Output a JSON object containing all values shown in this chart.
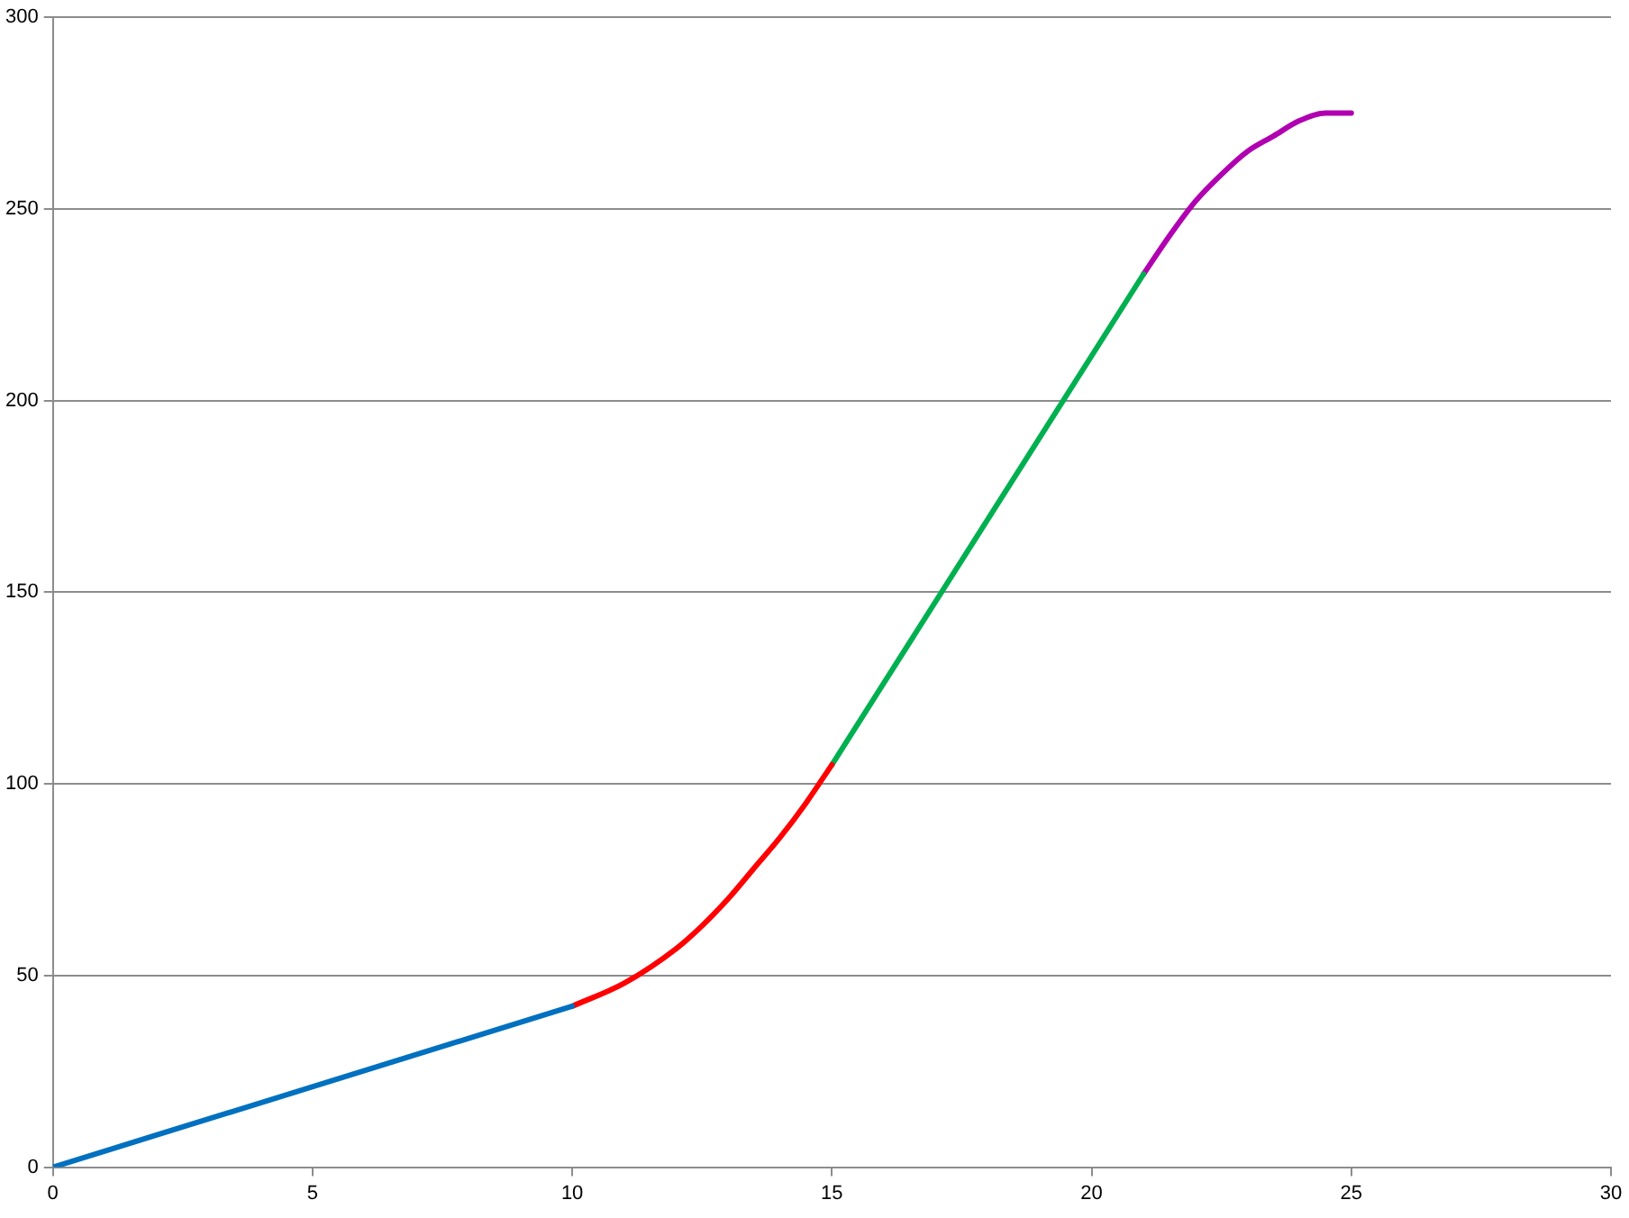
{
  "chart_data": {
    "type": "line",
    "xlim": [
      0,
      30
    ],
    "xticks": [
      0,
      5,
      10,
      15,
      20,
      25,
      30
    ],
    "ylim": [
      0,
      300
    ],
    "yticks": [
      0,
      50,
      100,
      150,
      200,
      250,
      300
    ],
    "grid": "y",
    "marker": "none",
    "line_style": "solid",
    "series": [
      {
        "color": "#0070c0",
        "x": [
          0,
          10
        ],
        "values": [
          0,
          42
        ]
      },
      {
        "color": "#ff0000",
        "x": [
          10,
          11,
          12,
          12.5,
          13,
          13.5,
          14,
          14.5,
          15
        ],
        "values": [
          42,
          48,
          57,
          63,
          70,
          78,
          86,
          95,
          105
        ]
      },
      {
        "color": "#00b050",
        "x": [
          15,
          21
        ],
        "values": [
          105,
          233
        ]
      },
      {
        "color": "#b000b0",
        "x": [
          21,
          21.5,
          22,
          22.5,
          23,
          23.5,
          24,
          24.5,
          25
        ],
        "values": [
          233,
          243,
          252,
          259,
          265,
          269,
          273,
          275,
          275
        ]
      }
    ]
  }
}
